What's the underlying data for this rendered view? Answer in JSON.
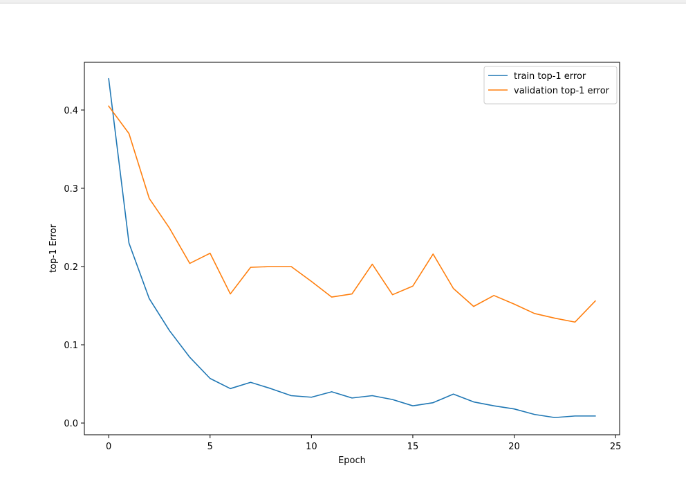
{
  "chart_data": {
    "type": "line",
    "title": "",
    "xlabel": "Epoch",
    "ylabel": "top-1 Error",
    "xlim": [
      -1.2,
      25.2
    ],
    "ylim": [
      -0.015,
      0.461
    ],
    "xticks": [
      0,
      5,
      10,
      15,
      20,
      25
    ],
    "yticks": [
      0.0,
      0.1,
      0.2,
      0.3,
      0.4
    ],
    "grid": false,
    "legend_position": "top-right",
    "x": [
      0,
      1,
      2,
      3,
      4,
      5,
      6,
      7,
      8,
      9,
      10,
      11,
      12,
      13,
      14,
      15,
      16,
      17,
      18,
      19,
      20,
      21,
      22,
      23,
      24
    ],
    "series": [
      {
        "name": "train top-1 error",
        "color": "#1f77b4",
        "values": [
          0.44,
          0.23,
          0.159,
          0.118,
          0.084,
          0.057,
          0.044,
          0.052,
          0.044,
          0.035,
          0.033,
          0.04,
          0.032,
          0.035,
          0.03,
          0.022,
          0.026,
          0.037,
          0.027,
          0.022,
          0.018,
          0.011,
          0.007,
          0.009,
          0.009
        ]
      },
      {
        "name": "validation top-1 error",
        "color": "#ff7f0e",
        "values": [
          0.405,
          0.37,
          0.287,
          0.249,
          0.204,
          0.217,
          0.165,
          0.199,
          0.2,
          0.2,
          0.181,
          0.161,
          0.165,
          0.203,
          0.164,
          0.175,
          0.216,
          0.172,
          0.149,
          0.163,
          0.152,
          0.14,
          0.134,
          0.129,
          0.156
        ]
      }
    ]
  }
}
